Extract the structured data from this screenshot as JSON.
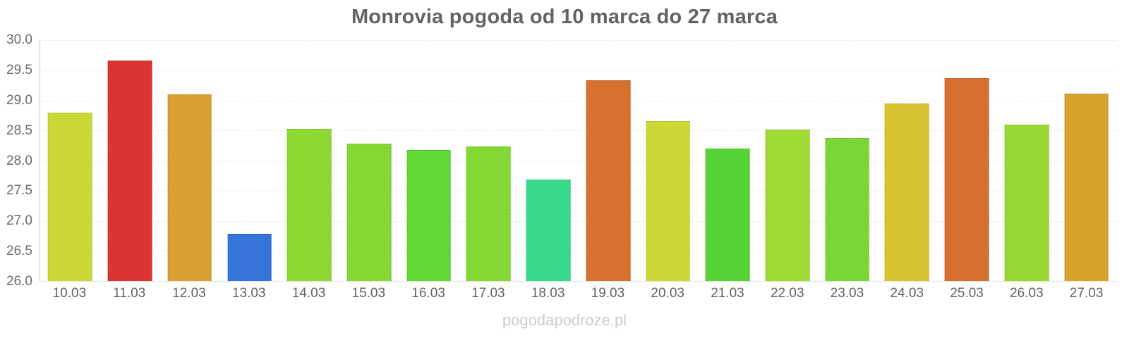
{
  "title": "Monrovia pogoda od 10 marca do 27 marca",
  "watermark": "pogodapodroze.pl",
  "colors": {
    "background": "#ffffff",
    "title_text": "#636363",
    "tick_text": "#6a6a6a",
    "axis_line": "#c9c9c9",
    "gridline": "#ececec",
    "watermark_text": "#c8cdd0"
  },
  "chart_data": {
    "type": "bar",
    "title": "Monrovia pogoda od 10 marca do 27 marca",
    "xlabel": "",
    "ylabel": "",
    "ylim": [
      26.0,
      30.0
    ],
    "ytick_step": 0.5,
    "yticks": [
      "30.0",
      "29.5",
      "29.0",
      "28.5",
      "28.0",
      "27.5",
      "27.0",
      "26.5",
      "26.0"
    ],
    "grid": true,
    "legend": false,
    "categories": [
      "10.03",
      "11.03",
      "12.03",
      "13.03",
      "14.03",
      "15.03",
      "16.03",
      "17.03",
      "18.03",
      "19.03",
      "20.03",
      "21.03",
      "22.03",
      "23.03",
      "24.03",
      "25.03",
      "26.03",
      "27.03"
    ],
    "values": [
      28.8,
      29.66,
      29.1,
      26.78,
      28.53,
      28.28,
      28.17,
      28.23,
      27.69,
      29.33,
      28.65,
      28.2,
      28.52,
      28.37,
      28.95,
      29.37,
      28.6,
      29.11
    ],
    "bar_colors": [
      "#cbd938",
      "#da3433",
      "#d9a133",
      "#3674da",
      "#8ed833",
      "#85d834",
      "#5fd834",
      "#83d834",
      "#39d98d",
      "#d6712f",
      "#ccd836",
      "#58d335",
      "#9fd933",
      "#79d634",
      "#d7c32f",
      "#d6702e",
      "#98d832",
      "#d7a32d"
    ]
  }
}
